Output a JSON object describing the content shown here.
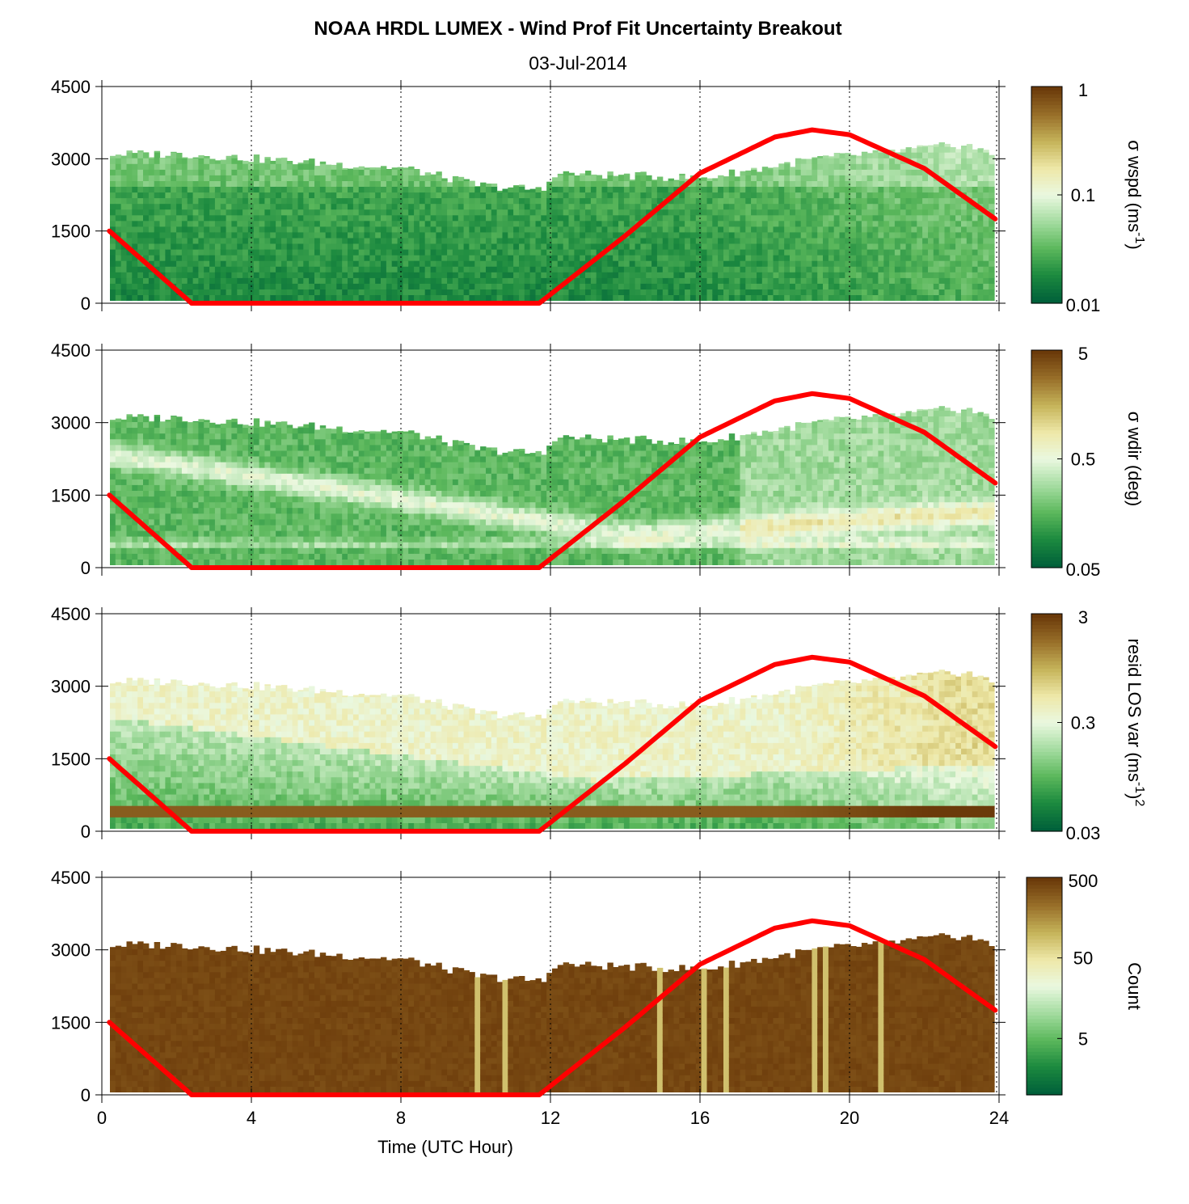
{
  "title": "NOAA HRDL LUMEX - Wind Prof Fit Uncertainty Breakout",
  "subtitle": "03-Jul-2014",
  "colors": {
    "ramp": [
      "#00603a",
      "#1c8a3f",
      "#5cb85c",
      "#a4dca0",
      "#eaf8e0",
      "#eee8a8",
      "#c6b45a",
      "#99702a",
      "#6b3a0a"
    ],
    "sun_line": "#ff0000",
    "axis": "#000000"
  },
  "chart_data": [
    {
      "type": "heatmap",
      "panel": "sigma-wspd",
      "xlabel": "",
      "ylabel": "",
      "xlim": [
        0,
        24
      ],
      "ylim": [
        0,
        4500
      ],
      "x_ticks": [
        "0",
        "4",
        "8",
        "12",
        "16",
        "20",
        "24"
      ],
      "y_ticks": [
        "0",
        "1500",
        "3000",
        "4500"
      ],
      "grid": "vertical dotted",
      "colorbar": {
        "label": "σ wspd (ms",
        "label_sup": "-1",
        "label_tail": ")",
        "scale": "log",
        "range": [
          0.01,
          1
        ],
        "tick_labels": [
          "1",
          "0.1",
          "0.01"
        ]
      },
      "data_top_m": {
        "x": [
          0,
          2,
          5,
          8,
          10,
          11.7,
          12,
          16,
          19,
          21,
          23,
          24
        ],
        "y": [
          3100,
          3100,
          2950,
          2800,
          2450,
          2350,
          2700,
          2600,
          3000,
          3150,
          3300,
          3000
        ]
      },
      "sun_elevation_m": {
        "x": [
          0.2,
          2.4,
          11.7,
          14,
          16,
          18,
          19,
          20,
          22,
          23.9
        ],
        "y": [
          1500,
          0,
          0,
          1400,
          2700,
          3450,
          3600,
          3500,
          2800,
          1750
        ]
      }
    },
    {
      "type": "heatmap",
      "panel": "sigma-wdir",
      "xlim": [
        0,
        24
      ],
      "ylim": [
        0,
        4500
      ],
      "x_ticks": [
        "0",
        "4",
        "8",
        "12",
        "16",
        "20",
        "24"
      ],
      "y_ticks": [
        "0",
        "1500",
        "3000",
        "4500"
      ],
      "grid": "vertical dotted",
      "colorbar": {
        "label": "σ wdir (deg)",
        "scale": "log",
        "range": [
          0.05,
          5
        ],
        "tick_labels": [
          "5",
          "0.5",
          "0.05"
        ]
      },
      "data_top_m": {
        "x": [
          0,
          2,
          5,
          8,
          10,
          11.7,
          12,
          16,
          19,
          21,
          23,
          24
        ],
        "y": [
          3100,
          3100,
          2950,
          2800,
          2450,
          2350,
          2700,
          2600,
          3000,
          3150,
          3300,
          3000
        ]
      },
      "sun_elevation_m": {
        "x": [
          0.2,
          2.4,
          11.7,
          14,
          16,
          18,
          19,
          20,
          22,
          23.9
        ],
        "y": [
          1500,
          0,
          0,
          1400,
          2700,
          3450,
          3600,
          3500,
          2800,
          1750
        ]
      }
    },
    {
      "type": "heatmap",
      "panel": "resid-los-var",
      "xlim": [
        0,
        24
      ],
      "ylim": [
        0,
        4500
      ],
      "x_ticks": [
        "0",
        "4",
        "8",
        "12",
        "16",
        "20",
        "24"
      ],
      "y_ticks": [
        "0",
        "1500",
        "3000",
        "4500"
      ],
      "grid": "vertical dotted",
      "colorbar": {
        "label": "resid LOS var (ms",
        "label_sup": "-1",
        "label_tail": ")",
        "label_sup2": "2",
        "scale": "log",
        "range": [
          0.03,
          3
        ],
        "tick_labels": [
          "3",
          "0.3",
          "0.03"
        ]
      },
      "data_top_m": {
        "x": [
          0,
          2,
          5,
          8,
          10,
          11.7,
          12,
          16,
          19,
          21,
          23,
          24
        ],
        "y": [
          3100,
          3100,
          2950,
          2800,
          2450,
          2350,
          2700,
          2600,
          3000,
          3150,
          3300,
          3000
        ]
      },
      "sun_elevation_m": {
        "x": [
          0.2,
          2.4,
          11.7,
          14,
          16,
          18,
          19,
          20,
          22,
          23.9
        ],
        "y": [
          1500,
          0,
          0,
          1400,
          2700,
          3450,
          3600,
          3500,
          2800,
          1750
        ]
      }
    },
    {
      "type": "heatmap",
      "panel": "count",
      "xlabel": "Time (UTC Hour)",
      "xlim": [
        0,
        24
      ],
      "ylim": [
        0,
        4500
      ],
      "x_ticks": [
        "0",
        "4",
        "8",
        "12",
        "16",
        "20",
        "24"
      ],
      "y_ticks": [
        "0",
        "1500",
        "3000",
        "4500"
      ],
      "grid": "vertical dotted",
      "colorbar": {
        "label": "Count",
        "scale": "log",
        "range": [
          1,
          500
        ],
        "tick_labels": [
          "500",
          "50",
          "5"
        ]
      },
      "data_top_m": {
        "x": [
          0,
          2,
          5,
          8,
          10,
          11.7,
          12,
          16,
          19,
          21,
          23,
          24
        ],
        "y": [
          3100,
          3100,
          2950,
          2800,
          2450,
          2350,
          2700,
          2600,
          3000,
          3150,
          3300,
          3000
        ]
      },
      "sun_elevation_m": {
        "x": [
          0.2,
          2.4,
          11.7,
          14,
          16,
          18,
          19,
          20,
          22,
          23.9
        ],
        "y": [
          1500,
          0,
          0,
          1400,
          2700,
          3450,
          3600,
          3500,
          2800,
          1750
        ]
      }
    }
  ]
}
